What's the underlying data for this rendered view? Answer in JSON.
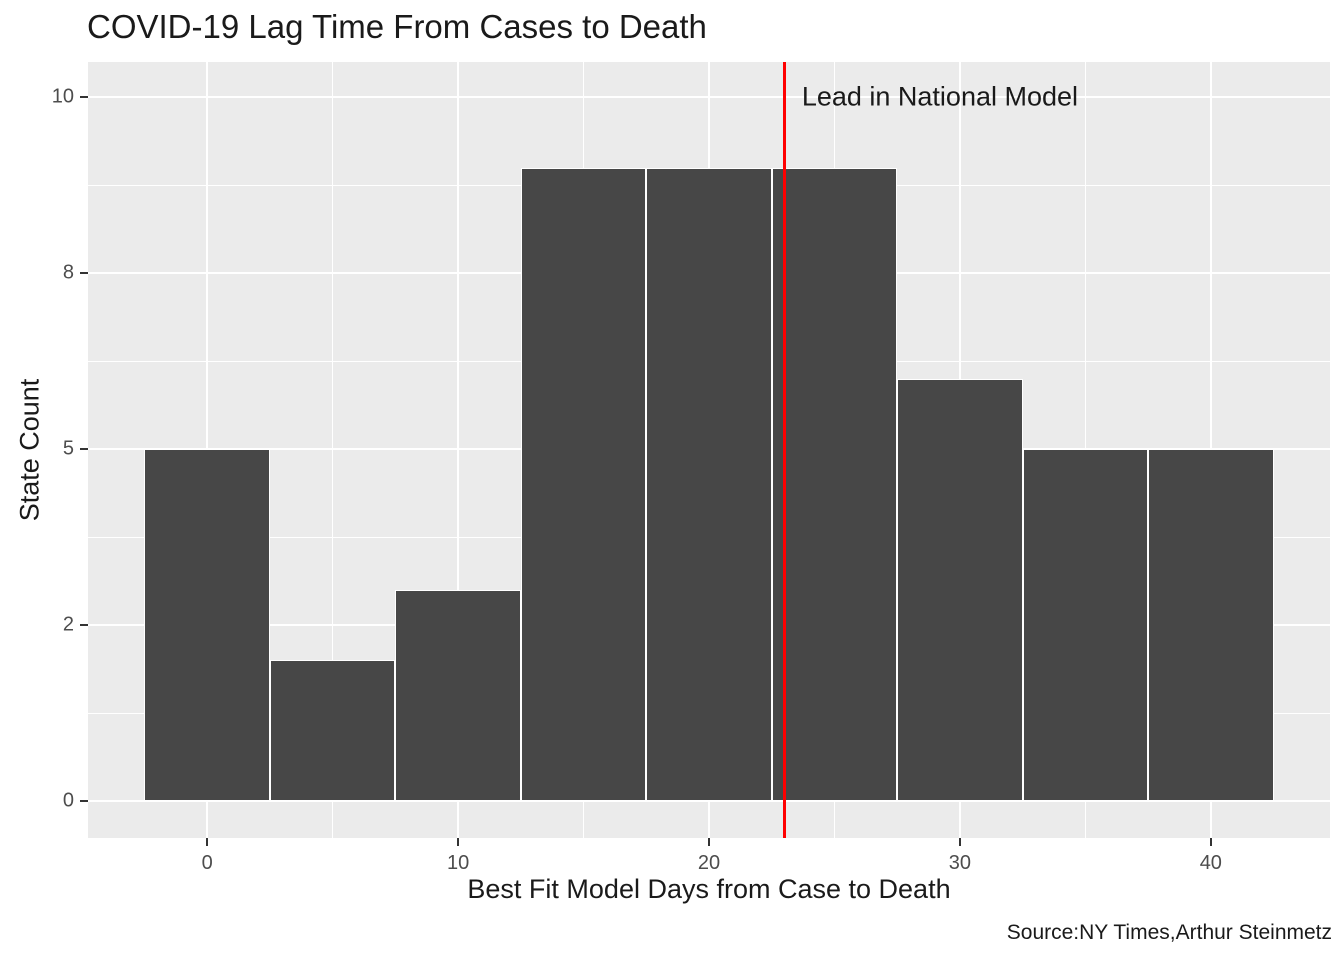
{
  "chart_data": {
    "type": "bar",
    "subtype": "histogram",
    "title": "COVID-19 Lag Time From Cases to Death",
    "xlabel": "Best Fit Model Days from Case to Death",
    "ylabel": "State Count",
    "caption": "Source:NY Times,Arthur Steinmetz",
    "bin_centers": [
      0,
      5,
      10,
      15,
      20,
      25,
      30,
      35,
      40
    ],
    "bin_width": 5,
    "values": [
      5,
      2,
      3,
      9,
      9,
      9,
      6,
      5,
      5
    ],
    "xlim": [
      -4.75,
      44.75
    ],
    "ylim": [
      -0.525,
      10.5
    ],
    "x_ticks": {
      "values": [
        0,
        10,
        20,
        30,
        40
      ],
      "labels": [
        "0",
        "10",
        "20",
        "30",
        "40"
      ]
    },
    "x_minor": [
      5,
      15,
      25,
      35
    ],
    "y_ticks": {
      "values": [
        0,
        2.5,
        5,
        7.5,
        10
      ],
      "labels": [
        "0",
        "2",
        "5",
        "8",
        "10"
      ]
    },
    "y_minor": [
      1.25,
      3.75,
      6.25,
      8.75
    ],
    "vline": {
      "x": 23,
      "color": "#FF0000",
      "label": "Lead in National Model",
      "label_x": 23.7,
      "label_y": 10
    },
    "grid": true,
    "legend": "none",
    "colors": {
      "bar_fill": "#474747",
      "bar_stroke": "#FFFFFF",
      "panel_bg": "#EBEBEB",
      "gridline": "#FFFFFF",
      "tick_label": "#4D4D4D",
      "text": "#1A1A1A",
      "vline": "#FF0000"
    }
  }
}
